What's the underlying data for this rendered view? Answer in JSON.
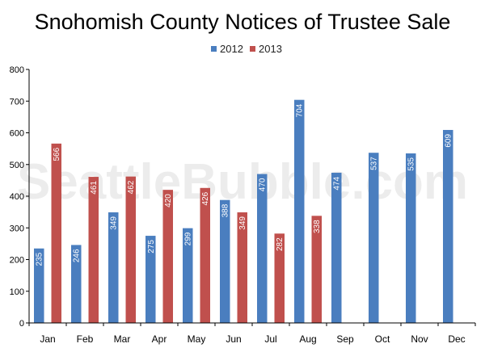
{
  "chart_data": {
    "type": "bar",
    "title": "Snohomish County Notices of Trustee Sale",
    "categories": [
      "Jan",
      "Feb",
      "Mar",
      "Apr",
      "May",
      "Jun",
      "Jul",
      "Aug",
      "Sep",
      "Oct",
      "Nov",
      "Dec"
    ],
    "series": [
      {
        "name": "2012",
        "color": "#4a7ebf",
        "values": [
          235,
          246,
          349,
          275,
          299,
          388,
          470,
          704,
          474,
          537,
          535,
          609
        ]
      },
      {
        "name": "2013",
        "color": "#c0504d",
        "values": [
          566,
          461,
          462,
          420,
          426,
          349,
          282,
          338,
          null,
          null,
          null,
          null
        ]
      }
    ],
    "ylim": [
      0,
      800
    ],
    "yticks": [
      0,
      100,
      200,
      300,
      400,
      500,
      600,
      700,
      800
    ],
    "grid": false,
    "legend_position": "top-center",
    "xlabel": "",
    "ylabel": ""
  },
  "watermark": "SeattleBubble.com"
}
